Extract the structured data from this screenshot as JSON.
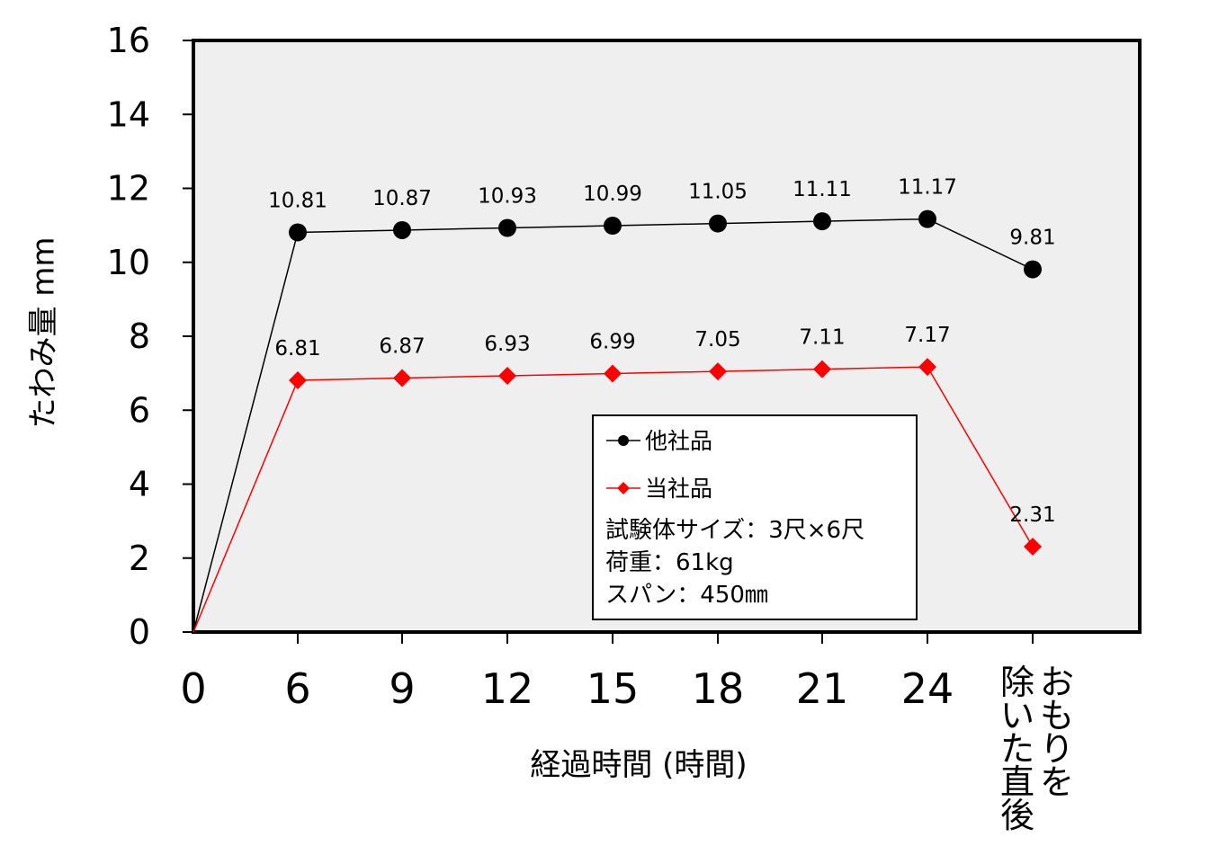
{
  "chart_data": {
    "type": "line",
    "ylabel": "たわみ量 mm",
    "xlabel": "経過時間 (時間)",
    "ylim": [
      0,
      16
    ],
    "yticks": [
      "0",
      "2",
      "4",
      "6",
      "8",
      "10",
      "12",
      "14",
      "16"
    ],
    "xticks": [
      "0",
      "6",
      "9",
      "12",
      "15",
      "18",
      "21",
      "24"
    ],
    "last_category_label": "おもりを除いた直後",
    "last_category_columns": [
      "おもりを",
      "除いた直後"
    ],
    "x": [
      0,
      6,
      9,
      12,
      15,
      18,
      21,
      24,
      27
    ],
    "series": [
      {
        "name": "他社品",
        "values": [
          0,
          10.81,
          10.87,
          10.93,
          10.99,
          11.05,
          11.11,
          11.17,
          9.81
        ],
        "labels": [
          "",
          "10.81",
          "10.87",
          "10.93",
          "10.99",
          "11.05",
          "11.11",
          "11.17",
          "9.81"
        ],
        "color": "#000000",
        "marker": "circle"
      },
      {
        "name": "当社品",
        "values": [
          0,
          6.81,
          6.87,
          6.93,
          6.99,
          7.05,
          7.11,
          7.17,
          2.31
        ],
        "labels": [
          "",
          "6.81",
          "6.87",
          "6.93",
          "6.99",
          "7.05",
          "7.11",
          "7.17",
          "2.31"
        ],
        "color": "#ff0000",
        "marker": "diamond"
      }
    ],
    "legend_position": "bottom-center inside plot",
    "grid": false,
    "plot_background": "#efefef"
  },
  "note": {
    "lines": [
      "試験体サイズ：3尺×6尺",
      "荷重：61kg",
      "スパン：450㎜"
    ]
  }
}
